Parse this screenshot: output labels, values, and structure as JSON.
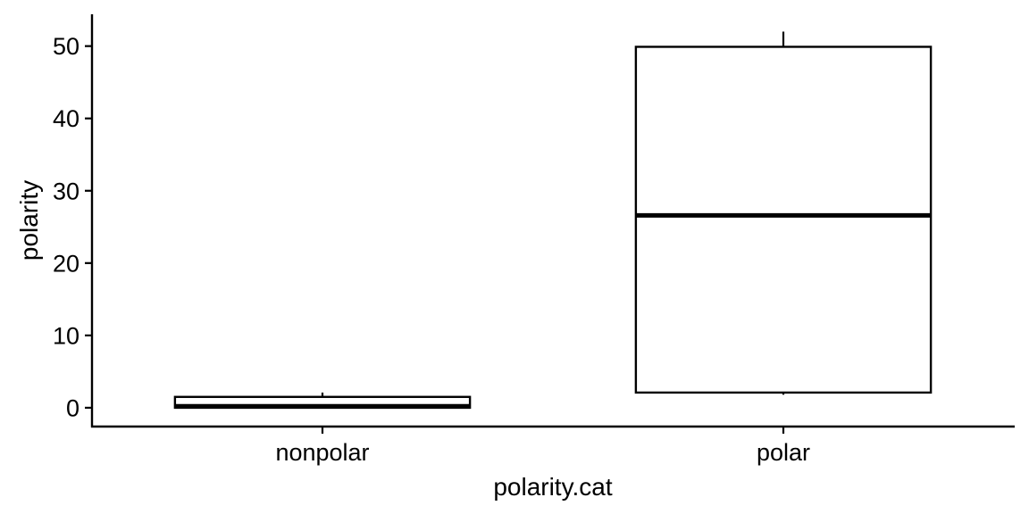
{
  "chart_data": {
    "type": "box",
    "title": "",
    "xlabel": "polarity.cat",
    "ylabel": "polarity",
    "ylim": [
      -2.6,
      54.4
    ],
    "yticks": [
      0,
      10,
      20,
      30,
      40,
      50
    ],
    "grid": false,
    "legend": "none",
    "categories": [
      "nonpolar",
      "polar"
    ],
    "boxes": [
      {
        "category": "nonpolar",
        "lower_whisker": 0.0,
        "q1": 0.0,
        "median": 0.2,
        "q3": 1.5,
        "upper_whisker": 2.1
      },
      {
        "category": "polar",
        "lower_whisker": 1.8,
        "q1": 2.1,
        "median": 26.6,
        "q3": 49.9,
        "upper_whisker": 52.0
      }
    ]
  }
}
